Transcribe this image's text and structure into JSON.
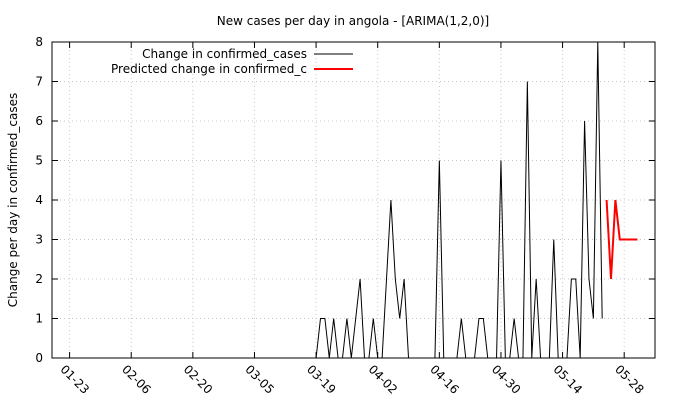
{
  "chart_data": {
    "type": "line",
    "title": "New cases per day in angola -  [ARIMA(1,2,0)]",
    "xlabel": "",
    "ylabel": "Change per day in confirmed_cases",
    "ylim": [
      0,
      8
    ],
    "xlim": [
      "2020-01-19",
      "2020-06-04"
    ],
    "y_ticks": [
      0,
      1,
      2,
      3,
      4,
      5,
      6,
      7,
      8
    ],
    "x_ticks": [
      {
        "date": "2020-01-23",
        "label": "01-23"
      },
      {
        "date": "2020-02-06",
        "label": "02-06"
      },
      {
        "date": "2020-02-20",
        "label": "02-20"
      },
      {
        "date": "2020-03-05",
        "label": "03-05"
      },
      {
        "date": "2020-03-19",
        "label": "03-19"
      },
      {
        "date": "2020-04-02",
        "label": "04-02"
      },
      {
        "date": "2020-04-16",
        "label": "04-16"
      },
      {
        "date": "2020-04-30",
        "label": "04-30"
      },
      {
        "date": "2020-05-14",
        "label": "05-14"
      },
      {
        "date": "2020-05-28",
        "label": "05-28"
      }
    ],
    "grid": true,
    "legend_position": "top-left",
    "series": [
      {
        "name": "Change in confirmed_cases",
        "color": "#000000",
        "points": [
          [
            "2020-03-19",
            0
          ],
          [
            "2020-03-20",
            1
          ],
          [
            "2020-03-21",
            1
          ],
          [
            "2020-03-22",
            0
          ],
          [
            "2020-03-23",
            1
          ],
          [
            "2020-03-24",
            0
          ],
          [
            "2020-03-25",
            0
          ],
          [
            "2020-03-26",
            1
          ],
          [
            "2020-03-27",
            0
          ],
          [
            "2020-03-28",
            1
          ],
          [
            "2020-03-29",
            2
          ],
          [
            "2020-03-30",
            0
          ],
          [
            "2020-03-31",
            0
          ],
          [
            "2020-04-01",
            1
          ],
          [
            "2020-04-02",
            0
          ],
          [
            "2020-04-03",
            0
          ],
          [
            "2020-04-04",
            2
          ],
          [
            "2020-04-05",
            4
          ],
          [
            "2020-04-06",
            2
          ],
          [
            "2020-04-07",
            1
          ],
          [
            "2020-04-08",
            2
          ],
          [
            "2020-04-09",
            0
          ],
          [
            "2020-04-10",
            0
          ],
          [
            "2020-04-11",
            0
          ],
          [
            "2020-04-12",
            0
          ],
          [
            "2020-04-13",
            0
          ],
          [
            "2020-04-14",
            0
          ],
          [
            "2020-04-15",
            0
          ],
          [
            "2020-04-16",
            5
          ],
          [
            "2020-04-17",
            0
          ],
          [
            "2020-04-18",
            0
          ],
          [
            "2020-04-19",
            0
          ],
          [
            "2020-04-20",
            0
          ],
          [
            "2020-04-21",
            1
          ],
          [
            "2020-04-22",
            0
          ],
          [
            "2020-04-23",
            0
          ],
          [
            "2020-04-24",
            0
          ],
          [
            "2020-04-25",
            1
          ],
          [
            "2020-04-26",
            1
          ],
          [
            "2020-04-27",
            0
          ],
          [
            "2020-04-28",
            0
          ],
          [
            "2020-04-29",
            0
          ],
          [
            "2020-04-30",
            5
          ],
          [
            "2020-05-01",
            0
          ],
          [
            "2020-05-02",
            0
          ],
          [
            "2020-05-03",
            1
          ],
          [
            "2020-05-04",
            0
          ],
          [
            "2020-05-05",
            0
          ],
          [
            "2020-05-06",
            7
          ],
          [
            "2020-05-07",
            0
          ],
          [
            "2020-05-08",
            2
          ],
          [
            "2020-05-09",
            0
          ],
          [
            "2020-05-10",
            0
          ],
          [
            "2020-05-11",
            0
          ],
          [
            "2020-05-12",
            3
          ],
          [
            "2020-05-13",
            0
          ],
          [
            "2020-05-14",
            0
          ],
          [
            "2020-05-15",
            0
          ],
          [
            "2020-05-16",
            2
          ],
          [
            "2020-05-17",
            2
          ],
          [
            "2020-05-18",
            0
          ],
          [
            "2020-05-19",
            6
          ],
          [
            "2020-05-20",
            2
          ],
          [
            "2020-05-21",
            1
          ],
          [
            "2020-05-22",
            8
          ],
          [
            "2020-05-23",
            1
          ]
        ]
      },
      {
        "name": "Predicted change in confirmed_c",
        "color": "#ff0000",
        "points": [
          [
            "2020-05-24",
            4
          ],
          [
            "2020-05-25",
            2
          ],
          [
            "2020-05-26",
            4
          ],
          [
            "2020-05-27",
            3
          ],
          [
            "2020-05-28",
            3
          ],
          [
            "2020-05-29",
            3
          ],
          [
            "2020-05-30",
            3
          ],
          [
            "2020-05-31",
            3
          ]
        ]
      }
    ]
  }
}
